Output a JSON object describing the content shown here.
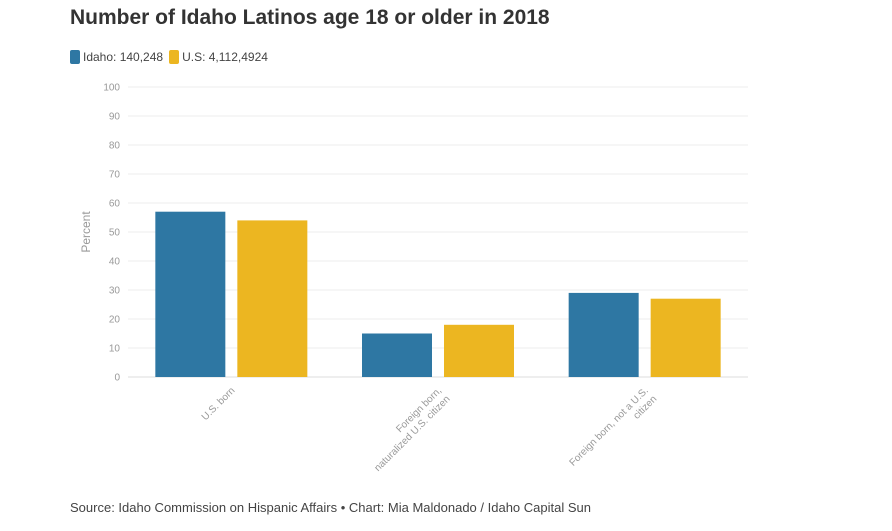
{
  "title": "Number of Idaho Latinos age 18 or older in 2018",
  "legend": [
    {
      "label": "Idaho: 140,248",
      "color": "#2e77a3"
    },
    {
      "label": "U.S: 4,112,4924",
      "color": "#ecb621"
    }
  ],
  "footer": "Source: Idaho Commission on Hispanic Affairs • Chart: Mia Maldonado / Idaho Capital Sun",
  "chart_data": {
    "type": "bar",
    "title": "Number of Idaho Latinos age 18 or older in 2018",
    "ylabel": "Percent",
    "xlabel": "",
    "ylim": [
      0,
      100
    ],
    "yticks": [
      0,
      10,
      20,
      30,
      40,
      50,
      60,
      70,
      80,
      90,
      100
    ],
    "grid": true,
    "legend_position": "top-left",
    "categories": [
      [
        "U.S. born"
      ],
      [
        "Foreign born,",
        "naturalized U.S. citizen"
      ],
      [
        "Foreign born, not a U.S.",
        "citizen"
      ]
    ],
    "series": [
      {
        "name": "Idaho: 140,248",
        "color": "#2e77a3",
        "values": [
          57,
          15,
          29
        ]
      },
      {
        "name": "U.S: 4,112,4924",
        "color": "#ecb621",
        "values": [
          54,
          18,
          27
        ]
      }
    ]
  }
}
